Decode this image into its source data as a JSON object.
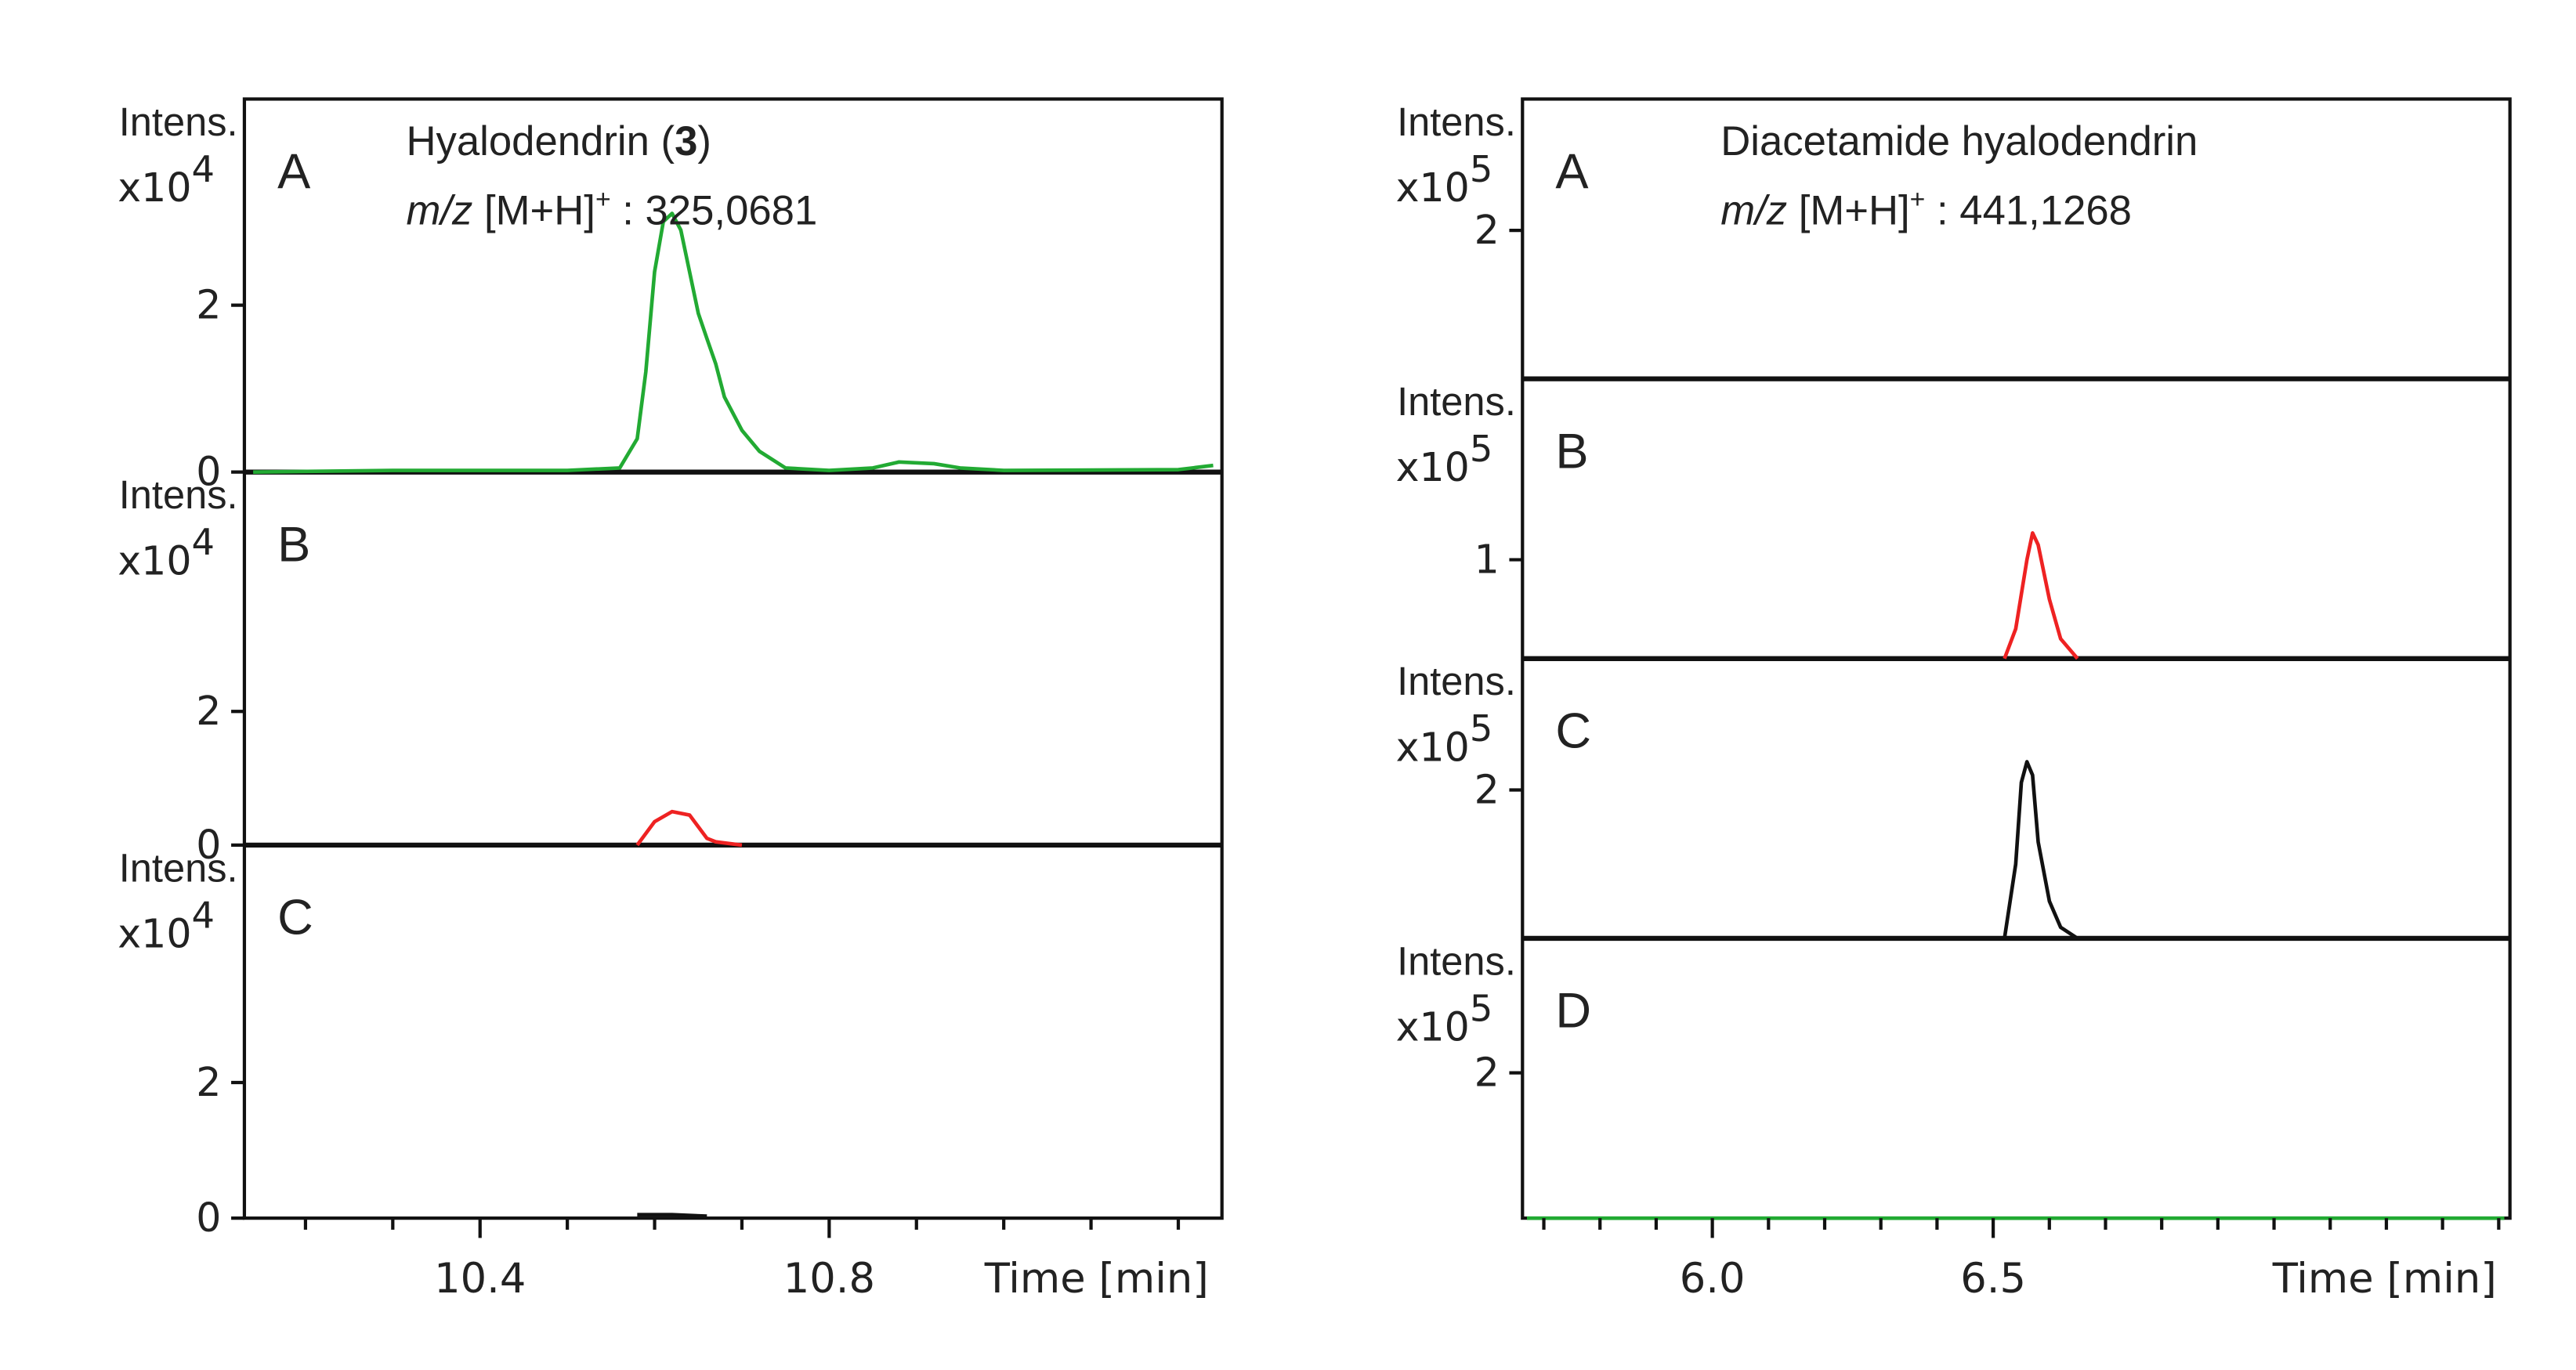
{
  "chart_data": [
    {
      "type": "line",
      "xlabel": "Time [min]",
      "xlim": [
        10.13,
        11.25
      ],
      "xticks": [
        10.4,
        10.8
      ],
      "xticks_minor": [
        10.2,
        10.3,
        10.5,
        10.6,
        10.7,
        10.9,
        11.0,
        11.1,
        11.2
      ],
      "annotation": {
        "name": "Hyalodendrin (",
        "name_bold": "3",
        "name_end": ")",
        "mz_italic": "m/z",
        "mz_ion": " [M+H]",
        "mz_charge": "+",
        "mz_value": " : 325,0681"
      },
      "panels": [
        {
          "label": "A",
          "ylabel": "Intens.",
          "y_unit": "x10",
          "y_exponent": "4",
          "ylim": [
            0,
            4.47
          ],
          "yticks": [
            0,
            2
          ],
          "series": [
            {
              "color": "#22aa33",
              "x": [
                10.14,
                10.3,
                10.5,
                10.56,
                10.58,
                10.59,
                10.6,
                10.61,
                10.62,
                10.63,
                10.64,
                10.65,
                10.66,
                10.67,
                10.68,
                10.7,
                10.72,
                10.75,
                10.8,
                10.85,
                10.88,
                10.92,
                10.95,
                11.0,
                11.2,
                11.24
              ],
              "values": [
                0,
                0.02,
                0.02,
                0.05,
                0.4,
                1.2,
                2.4,
                3.0,
                3.1,
                2.9,
                2.4,
                1.9,
                1.6,
                1.3,
                0.9,
                0.5,
                0.25,
                0.05,
                0.02,
                0.05,
                0.12,
                0.1,
                0.05,
                0.02,
                0.03,
                0.08
              ]
            }
          ]
        },
        {
          "label": "B",
          "ylabel": "Intens.",
          "y_unit": "x10",
          "y_exponent": "4",
          "ylim": [
            0,
            5.58
          ],
          "yticks": [
            0,
            2
          ],
          "series": [
            {
              "color": "#ee2222",
              "x": [
                10.58,
                10.6,
                10.62,
                10.64,
                10.66,
                10.67,
                10.7
              ],
              "values": [
                0,
                0.35,
                0.5,
                0.45,
                0.1,
                0.05,
                0
              ]
            }
          ]
        },
        {
          "label": "C",
          "ylabel": "Intens.",
          "y_unit": "x10",
          "y_exponent": "4",
          "ylim": [
            0,
            5.5
          ],
          "yticks": [
            0,
            2
          ],
          "series": [
            {
              "color": "#111111",
              "x": [
                10.58,
                10.62,
                10.66
              ],
              "values": [
                0.05,
                0.05,
                0.03
              ]
            }
          ]
        }
      ]
    },
    {
      "type": "line",
      "xlabel": "Time [min]",
      "xlim": [
        5.662,
        7.42
      ],
      "xticks": [
        {
          "value": 6,
          "label": "6.0"
        },
        6.5
      ],
      "xticks_minor": [
        5.7,
        5.8,
        5.9,
        6.1,
        6.2,
        6.3,
        6.4,
        6.6,
        6.7,
        6.8,
        6.9,
        7.0,
        7.1,
        7.2,
        7.3,
        7.4
      ],
      "annotation": {
        "name": "Diacetamide hyalodendrin",
        "mz_italic": "m/z",
        "mz_ion": " [M+H]",
        "mz_charge": "+",
        "mz_value": " : 441,1268"
      },
      "panels": [
        {
          "label": "A",
          "ylabel": "Intens.",
          "y_unit": "x10",
          "y_exponent": "5",
          "ylim": [
            0,
            3.77
          ],
          "yticks": [
            2
          ],
          "series": []
        },
        {
          "label": "B",
          "ylabel": "Intens.",
          "y_unit": "x10",
          "y_exponent": "5",
          "ylim": [
            0,
            2.83
          ],
          "yticks": [
            1
          ],
          "series": [
            {
              "color": "#ee2222",
              "x": [
                6.52,
                6.54,
                6.56,
                6.57,
                6.58,
                6.6,
                6.62,
                6.65
              ],
              "values": [
                0,
                0.3,
                1.0,
                1.27,
                1.15,
                0.6,
                0.2,
                0
              ]
            }
          ]
        },
        {
          "label": "C",
          "ylabel": "Intens.",
          "y_unit": "x10",
          "y_exponent": "5",
          "ylim": [
            0,
            3.77
          ],
          "yticks": [
            2
          ],
          "series": [
            {
              "color": "#111111",
              "x": [
                6.52,
                6.54,
                6.55,
                6.56,
                6.57,
                6.58,
                6.6,
                6.62,
                6.65
              ],
              "values": [
                0,
                1.0,
                2.1,
                2.38,
                2.2,
                1.3,
                0.5,
                0.15,
                0
              ]
            }
          ]
        },
        {
          "label": "D",
          "ylabel": "Intens.",
          "y_unit": "x10",
          "y_exponent": "5",
          "ylim": [
            0,
            3.85
          ],
          "yticks": [
            2
          ],
          "series": [
            {
              "color": "#22aa33",
              "x": [
                5.67,
                7.41
              ],
              "values": [
                0,
                0
              ]
            }
          ]
        }
      ]
    }
  ]
}
